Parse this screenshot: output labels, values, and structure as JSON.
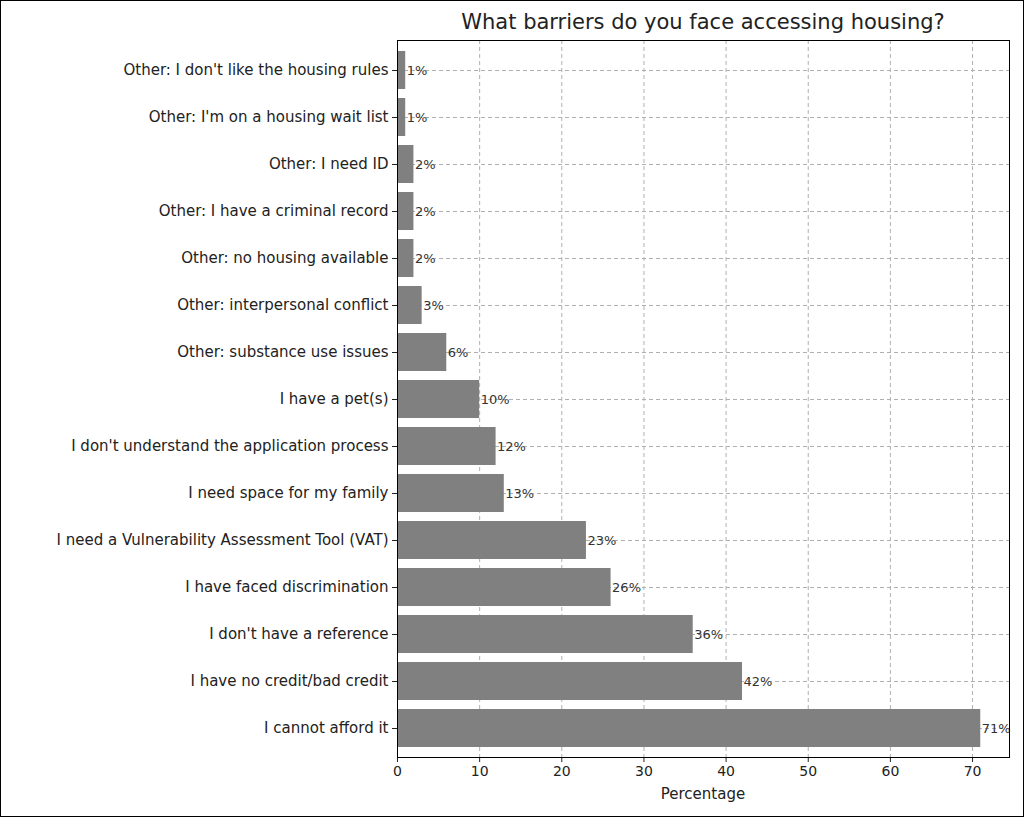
{
  "chart_data": {
    "type": "bar",
    "orientation": "horizontal",
    "title": "What barriers do you face accessing housing?",
    "x_label": "Percentage",
    "categories": [
      "Other: I don't like the housing rules",
      "Other: I'm on a housing wait list",
      "Other: I need ID",
      "Other: I have a criminal record",
      "Other: no housing available",
      "Other: interpersonal conflict",
      "Other: substance use issues",
      "I have a pet(s)",
      "I don't understand the application process",
      "I need space for my family",
      "I need a Vulnerability Assessment Tool (VAT)",
      "I have faced discrimination",
      "I don't have a reference",
      "I have no credit/bad credit",
      "I cannot afford it"
    ],
    "values": [
      1,
      1,
      2,
      2,
      2,
      3,
      6,
      10,
      12,
      13,
      23,
      26,
      36,
      42,
      71
    ],
    "value_labels": [
      "1%",
      "1%",
      "2%",
      "2%",
      "2%",
      "3%",
      "6%",
      "10%",
      "12%",
      "13%",
      "23%",
      "26%",
      "36%",
      "42%",
      "71%"
    ],
    "data_labels": true,
    "color": "#808080",
    "xlim": [
      0,
      74.5
    ],
    "xticks": [
      0,
      10,
      20,
      30,
      40,
      50,
      60,
      70
    ],
    "grid": true
  }
}
